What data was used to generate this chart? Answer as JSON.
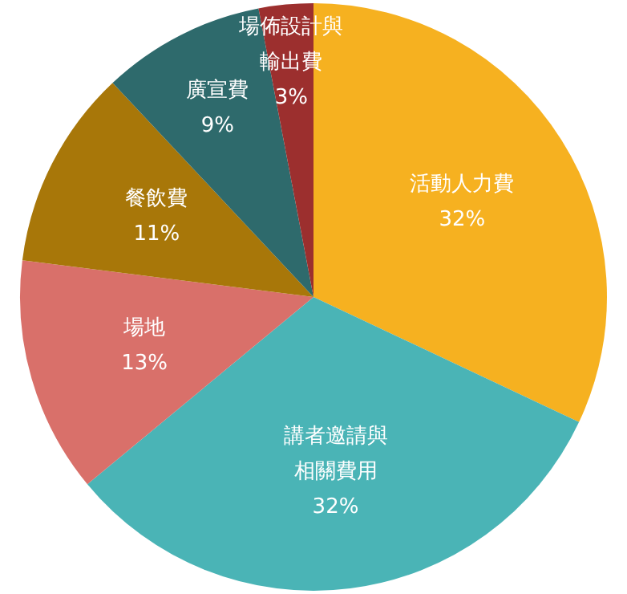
{
  "chart_data": {
    "type": "pie",
    "categories": [
      "活動人力費",
      "講者邀請與相關費用",
      "場地",
      "餐飲費",
      "廣宣費",
      "場佈設計與輸出費"
    ],
    "values": [
      32,
      32,
      13,
      11,
      9,
      3
    ],
    "value_labels": [
      "32%",
      "32%",
      "13%",
      "11%",
      "9%",
      "3%"
    ],
    "colors": [
      "#f6b120",
      "#4ab4b6",
      "#d9706a",
      "#a87709",
      "#2e6a6c",
      "#9c2f2e"
    ],
    "legend": false
  }
}
